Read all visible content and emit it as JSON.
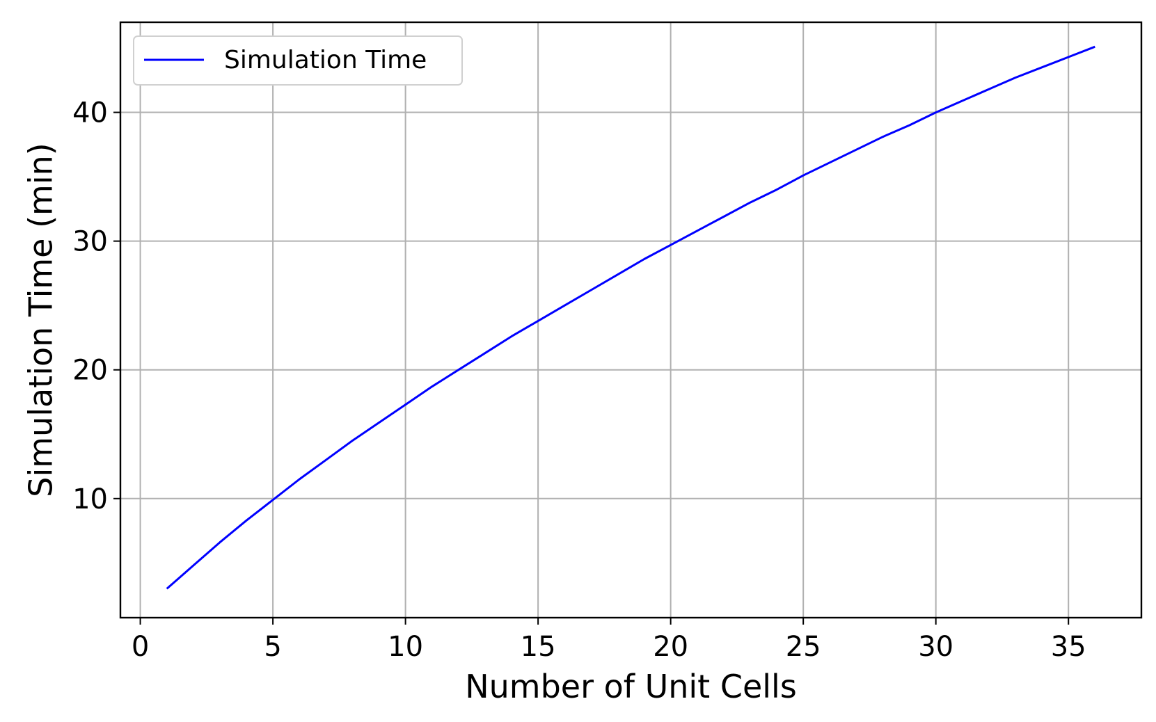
{
  "chart_data": {
    "type": "line",
    "title": "",
    "xlabel": "Number of Unit Cells",
    "ylabel": "Simulation Time (min)",
    "xlim": [
      -0.75,
      37.75
    ],
    "ylim": [
      0.75,
      47.0
    ],
    "xticks": [
      0,
      5,
      10,
      15,
      20,
      25,
      30,
      35
    ],
    "yticks": [
      10,
      20,
      30,
      40
    ],
    "grid": true,
    "legend_position": "upper-left",
    "series": [
      {
        "name": "Simulation Time",
        "color": "#0000ff",
        "x": [
          1,
          2,
          3,
          4,
          5,
          6,
          7,
          8,
          9,
          10,
          11,
          12,
          13,
          14,
          15,
          16,
          17,
          18,
          19,
          20,
          21,
          22,
          23,
          24,
          25,
          26,
          27,
          28,
          29,
          30,
          31,
          32,
          33,
          34,
          35,
          36
        ],
        "y": [
          3.0,
          4.8,
          6.6,
          8.3,
          9.9,
          11.5,
          13.0,
          14.5,
          15.9,
          17.3,
          18.7,
          20.0,
          21.3,
          22.6,
          23.8,
          25.0,
          26.2,
          27.4,
          28.6,
          29.7,
          30.8,
          31.9,
          33.0,
          34.0,
          35.1,
          36.1,
          37.1,
          38.1,
          39.0,
          40.0,
          40.9,
          41.8,
          42.7,
          43.5,
          44.3,
          45.1
        ]
      }
    ]
  }
}
